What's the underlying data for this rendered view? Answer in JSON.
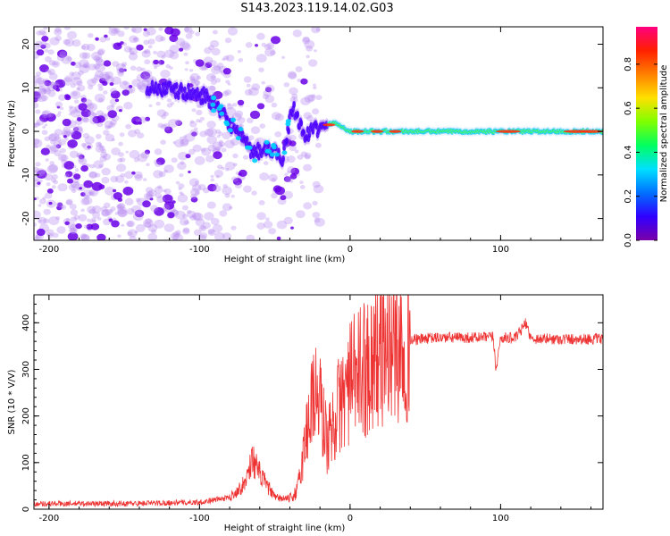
{
  "title": "S143.2023.119.14.02.G03",
  "chart_data": [
    {
      "type": "heatmap",
      "title": "S143.2023.119.14.02.G03",
      "xlabel": "Height of straight line (km)",
      "ylabel": "Frequency (Hz)",
      "xlim": [
        -210,
        168
      ],
      "ylim": [
        -25,
        24
      ],
      "xticks": [
        -200,
        -100,
        0,
        100
      ],
      "yticks": [
        -20,
        -10,
        0,
        10,
        20
      ],
      "colorbar": {
        "label": "Normalized spectral amplitude",
        "range": [
          0.0,
          0.97
        ],
        "ticks": [
          "0.0",
          "0.2",
          "0.4",
          "0.6",
          "0.8"
        ],
        "colormap": [
          "#7a00a8",
          "#3000ff",
          "#0070ff",
          "#00e0ff",
          "#00ff60",
          "#80ff00",
          "#ffe000",
          "#ff8000",
          "#ff2000",
          "#ff0080"
        ]
      },
      "ridge": {
        "x": [
          -130,
          -110,
          -95,
          -85,
          -75,
          -65,
          -55,
          -45,
          -38,
          -30,
          -20,
          -10,
          0,
          20,
          60,
          100,
          168
        ],
        "freq": [
          10,
          9,
          8,
          4,
          0,
          -5,
          -4,
          -6,
          6,
          -1,
          1,
          2,
          0,
          0,
          0,
          0,
          0
        ]
      }
    },
    {
      "type": "line",
      "xlabel": "Height of straight line (km)",
      "ylabel": "SNR (10 * V/V)",
      "xlim": [
        -210,
        168
      ],
      "ylim": [
        0,
        460
      ],
      "xticks": [
        -200,
        -100,
        0,
        100
      ],
      "yticks": [
        0,
        100,
        200,
        300,
        400
      ],
      "color": "#ee3333",
      "envelope": {
        "x": [
          -210,
          -150,
          -100,
          -80,
          -70,
          -65,
          -60,
          -50,
          -40,
          -35,
          -30,
          -25,
          -20,
          -15,
          -10,
          -5,
          0,
          5,
          10,
          15,
          20,
          25,
          30,
          40,
          50,
          60,
          80,
          95,
          97,
          100,
          110,
          117,
          120,
          140,
          168
        ],
        "y": [
          12,
          12,
          15,
          25,
          55,
          110,
          75,
          25,
          22,
          40,
          140,
          250,
          230,
          140,
          200,
          240,
          270,
          290,
          305,
          325,
          340,
          350,
          358,
          362,
          366,
          368,
          368,
          369,
          300,
          368,
          367,
          400,
          366,
          365,
          365
        ]
      }
    }
  ]
}
